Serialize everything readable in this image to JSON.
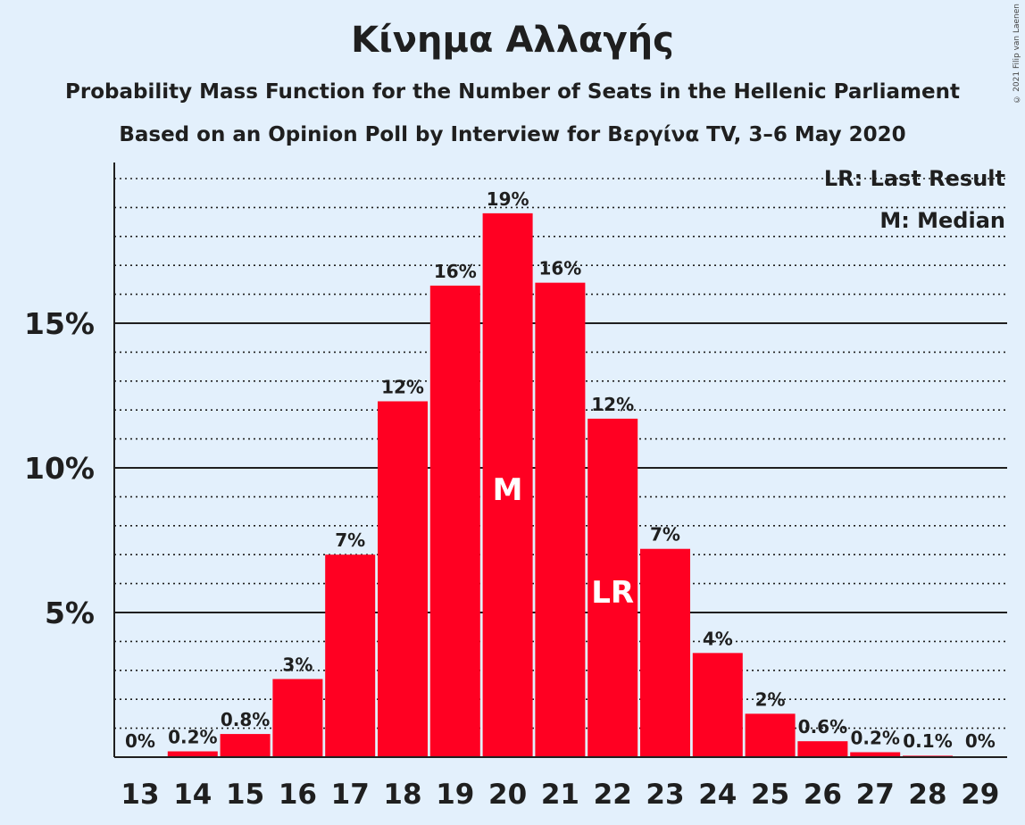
{
  "title": "Κίνημα Αλλαγής",
  "subtitle1": "Probability Mass Function for the Number of Seats in the Hellenic Parliament",
  "subtitle2": "Based on an Opinion Poll by Interview for Βεργίνα TV, 3–6 May 2020",
  "copyright": "© 2021 Filip van Laenen",
  "legend": [
    "LR: Last Result",
    "M: Median"
  ],
  "colors": {
    "bar": "#ff0022",
    "background": "#e3f0fc"
  },
  "chart_data": {
    "type": "bar",
    "categories": [
      "13",
      "14",
      "15",
      "16",
      "17",
      "18",
      "19",
      "20",
      "21",
      "22",
      "23",
      "24",
      "25",
      "26",
      "27",
      "28",
      "29"
    ],
    "values": [
      0,
      0.2,
      0.8,
      2.7,
      7.0,
      12.3,
      16.3,
      18.8,
      16.4,
      11.7,
      7.2,
      3.6,
      1.5,
      0.55,
      0.17,
      0.05,
      0
    ],
    "data_labels": [
      "0%",
      "0.2%",
      "0.8%",
      "3%",
      "7%",
      "12%",
      "16%",
      "19%",
      "16%",
      "12%",
      "7%",
      "4%",
      "2%",
      "0.6%",
      "0.2%",
      "0.1%",
      "0%"
    ],
    "bar_markers": {
      "20": "M",
      "22": "LR"
    },
    "y_ticks": [
      5,
      10,
      15
    ],
    "y_tick_labels": [
      "5%",
      "10%",
      "15%"
    ],
    "ylim": [
      0,
      20.5
    ],
    "minor_grid_step": 1,
    "grid": true,
    "legend_position": "top-right"
  }
}
